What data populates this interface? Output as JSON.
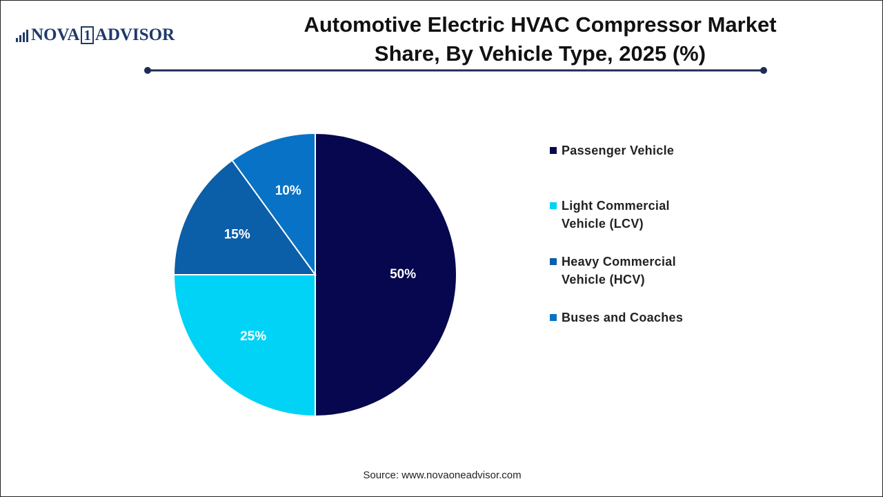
{
  "logo": {
    "left": "NOVA",
    "mark": "1",
    "right": "ADVISOR"
  },
  "chart_data": {
    "type": "pie",
    "title": "Automotive Electric HVAC Compressor Market Share, By Vehicle Type, 2025 (%)",
    "categories": [
      "Passenger Vehicle",
      "Light Commercial Vehicle (LCV)",
      "Heavy Commercial Vehicle (HCV)",
      "Buses and Coaches"
    ],
    "values": [
      50,
      25,
      15,
      10
    ],
    "value_labels": [
      "50%",
      "25%",
      "15%",
      "10%"
    ],
    "colors": [
      "#07074f",
      "#00d3f6",
      "#0b5ea8",
      "#0873c6"
    ]
  },
  "source": "Source: www.novaoneadvisor.com"
}
